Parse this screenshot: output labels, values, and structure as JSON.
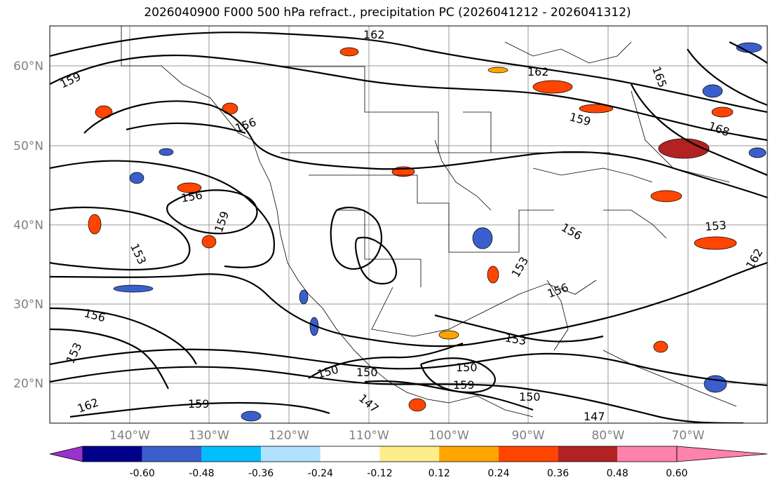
{
  "title": "2026040900 F000 500 hPa refract., precipitation PC (2026041212 - 2026041312)",
  "lat_labels": [
    "60°N",
    "50°N",
    "40°N",
    "30°N",
    "20°N"
  ],
  "lon_labels": [
    "140°W",
    "130°W",
    "120°W",
    "110°W",
    "100°W",
    "90°W",
    "80°W",
    "70°W"
  ],
  "colorbar": {
    "ticks": [
      "-0.60",
      "-0.48",
      "-0.36",
      "-0.24",
      "-0.12",
      "0.12",
      "0.24",
      "0.36",
      "0.48",
      "0.60"
    ],
    "colors": [
      "#9a32cd",
      "#00008b",
      "#3a5fcd",
      "#00bfff",
      "#b0e2ff",
      "#ffffff",
      "#ffec8b",
      "#ffa500",
      "#ff4500",
      "#b22222",
      "#ff82ab"
    ]
  },
  "contour_labels": [
    {
      "text": "162"
    },
    {
      "text": "162"
    },
    {
      "text": "165"
    },
    {
      "text": "159"
    },
    {
      "text": "156"
    },
    {
      "text": "159"
    },
    {
      "text": "168"
    },
    {
      "text": "156"
    },
    {
      "text": "159"
    },
    {
      "text": "153"
    },
    {
      "text": "153"
    },
    {
      "text": "156"
    },
    {
      "text": "153"
    },
    {
      "text": "162"
    },
    {
      "text": "156"
    },
    {
      "text": "150"
    },
    {
      "text": "150"
    },
    {
      "text": "150"
    },
    {
      "text": "153"
    },
    {
      "text": "150"
    },
    {
      "text": "159"
    },
    {
      "text": "147"
    },
    {
      "text": "147"
    },
    {
      "text": "162"
    },
    {
      "text": "156"
    },
    {
      "text": "159"
    },
    {
      "text": "153"
    }
  ],
  "precip_blobs": [
    {
      "color": "#ff4500"
    },
    {
      "color": "#ffa500"
    },
    {
      "color": "#ff4500"
    },
    {
      "color": "#ff4500"
    },
    {
      "color": "#ff4500"
    },
    {
      "color": "#b22222"
    },
    {
      "color": "#ff4500"
    },
    {
      "color": "#ff4500"
    },
    {
      "color": "#ff4500"
    },
    {
      "color": "#ff4500"
    },
    {
      "color": "#ff4500"
    },
    {
      "color": "#ff4500"
    },
    {
      "color": "#ff4500"
    },
    {
      "color": "#ff4500"
    },
    {
      "color": "#ffa500"
    },
    {
      "color": "#ff4500"
    },
    {
      "color": "#ff4500"
    },
    {
      "color": "#ff4500"
    },
    {
      "color": "#3a5fcd"
    },
    {
      "color": "#3a5fcd"
    },
    {
      "color": "#3a5fcd"
    },
    {
      "color": "#3a5fcd"
    },
    {
      "color": "#3a5fcd"
    },
    {
      "color": "#3a5fcd"
    },
    {
      "color": "#3a5fcd"
    },
    {
      "color": "#3a5fcd"
    },
    {
      "color": "#3a5fcd"
    },
    {
      "color": "#3a5fcd"
    },
    {
      "color": "#3a5fcd"
    }
  ]
}
